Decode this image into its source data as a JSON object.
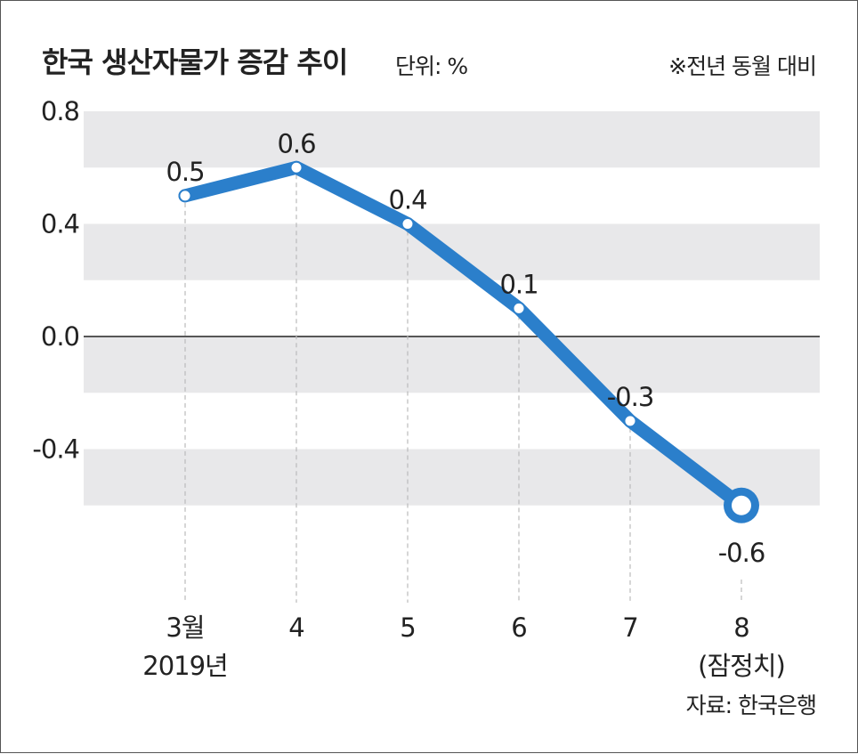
{
  "header": {
    "title": "한국 생산자물가 증감 추이",
    "unit": "단위: %",
    "note": "※전년 동월 대비"
  },
  "footer": {
    "source": "자료: 한국은행"
  },
  "colors": {
    "line": "#2b7fcb",
    "band": "#e8e8ea",
    "zero_line": "#222222",
    "dash": "#bbbbbb"
  },
  "chart_data": {
    "type": "line",
    "title": "한국 생산자물가 증감 추이",
    "ylabel": "",
    "xlabel": "",
    "ylim": [
      -0.8,
      0.8
    ],
    "yticks": [
      "0.8",
      "0.4",
      "0.0",
      "-0.4"
    ],
    "grid": "alternating horizontal bands",
    "categories": [
      [
        "3월",
        "2019년"
      ],
      [
        "4"
      ],
      [
        "5"
      ],
      [
        "6"
      ],
      [
        "7"
      ],
      [
        "8",
        "(잠정치)"
      ]
    ],
    "series": [
      {
        "values": [
          0.5,
          0.6,
          0.4,
          0.1,
          -0.3,
          -0.6
        ],
        "labels": [
          "0.5",
          "0.6",
          "0.4",
          "0.1",
          "-0.3",
          "-0.6"
        ]
      }
    ]
  }
}
